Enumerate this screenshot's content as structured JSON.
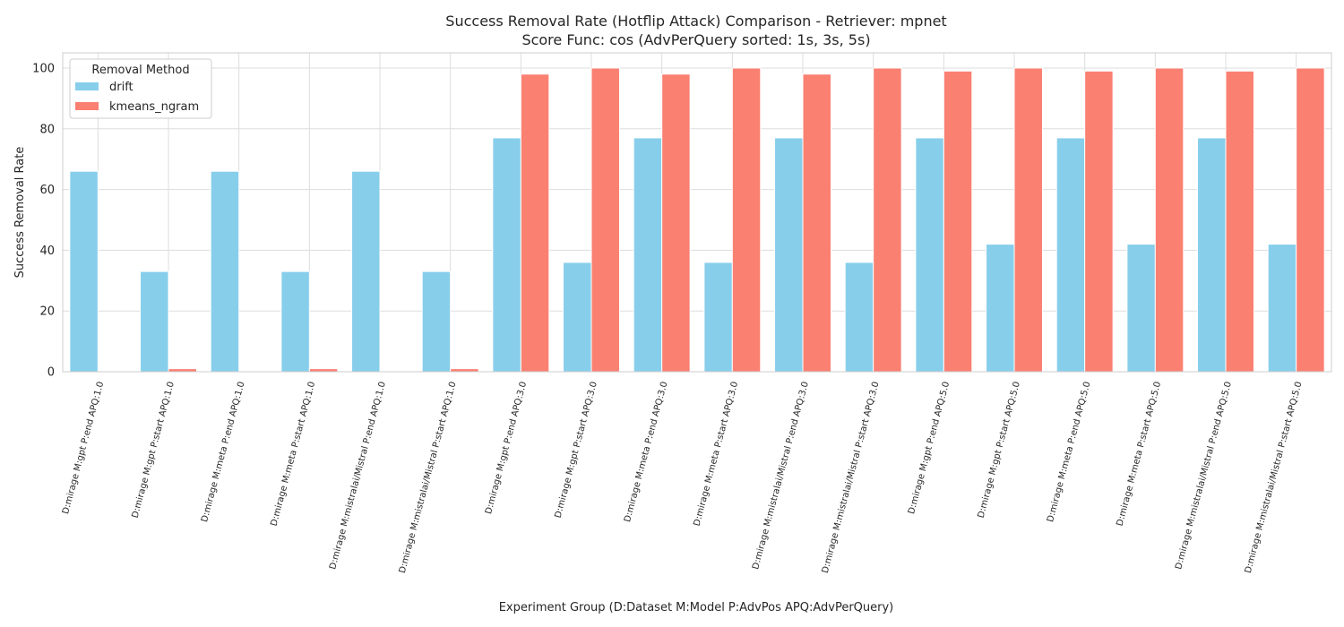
{
  "chart_data": {
    "type": "bar",
    "title_line1": "Success Removal Rate (Hotflip Attack) Comparison - Retriever: mpnet",
    "title_line2": "Score Func: cos (AdvPerQuery sorted: 1s, 3s, 5s)",
    "xlabel": "Experiment Group (D:Dataset M:Model P:AdvPos APQ:AdvPerQuery)",
    "ylabel": "Success Removal Rate",
    "ylim": [
      0,
      105
    ],
    "yticks": [
      0,
      20,
      40,
      60,
      80,
      100
    ],
    "grid": true,
    "legend": {
      "title": "Removal Method",
      "placement": "top-left"
    },
    "categories": [
      "D:mirage M:gpt P:end APQ:1.0",
      "D:mirage M:gpt P:start APQ:1.0",
      "D:mirage M:meta P:end APQ:1.0",
      "D:mirage M:meta P:start APQ:1.0",
      "D:mirage M:mistralai/Mistral P:end APQ:1.0",
      "D:mirage M:mistralai/Mistral P:start APQ:1.0",
      "D:mirage M:gpt P:end APQ:3.0",
      "D:mirage M:gpt P:start APQ:3.0",
      "D:mirage M:meta P:end APQ:3.0",
      "D:mirage M:meta P:start APQ:3.0",
      "D:mirage M:mistralai/Mistral P:end APQ:3.0",
      "D:mirage M:mistralai/Mistral P:start APQ:3.0",
      "D:mirage M:gpt P:end APQ:5.0",
      "D:mirage M:gpt P:start APQ:5.0",
      "D:mirage M:meta P:end APQ:5.0",
      "D:mirage M:meta P:start APQ:5.0",
      "D:mirage M:mistralai/Mistral P:end APQ:5.0",
      "D:mirage M:mistralai/Mistral P:start APQ:5.0"
    ],
    "series": [
      {
        "name": "drift",
        "color": "#87CEEB",
        "values": [
          66,
          33,
          66,
          33,
          66,
          33,
          77,
          36,
          77,
          36,
          77,
          36,
          77,
          42,
          77,
          42,
          77,
          42
        ]
      },
      {
        "name": "kmeans_ngram",
        "color": "#FA8072",
        "values": [
          0,
          1,
          0,
          1,
          0,
          1,
          98,
          100,
          98,
          100,
          98,
          100,
          99,
          100,
          99,
          100,
          99,
          100
        ]
      }
    ]
  }
}
